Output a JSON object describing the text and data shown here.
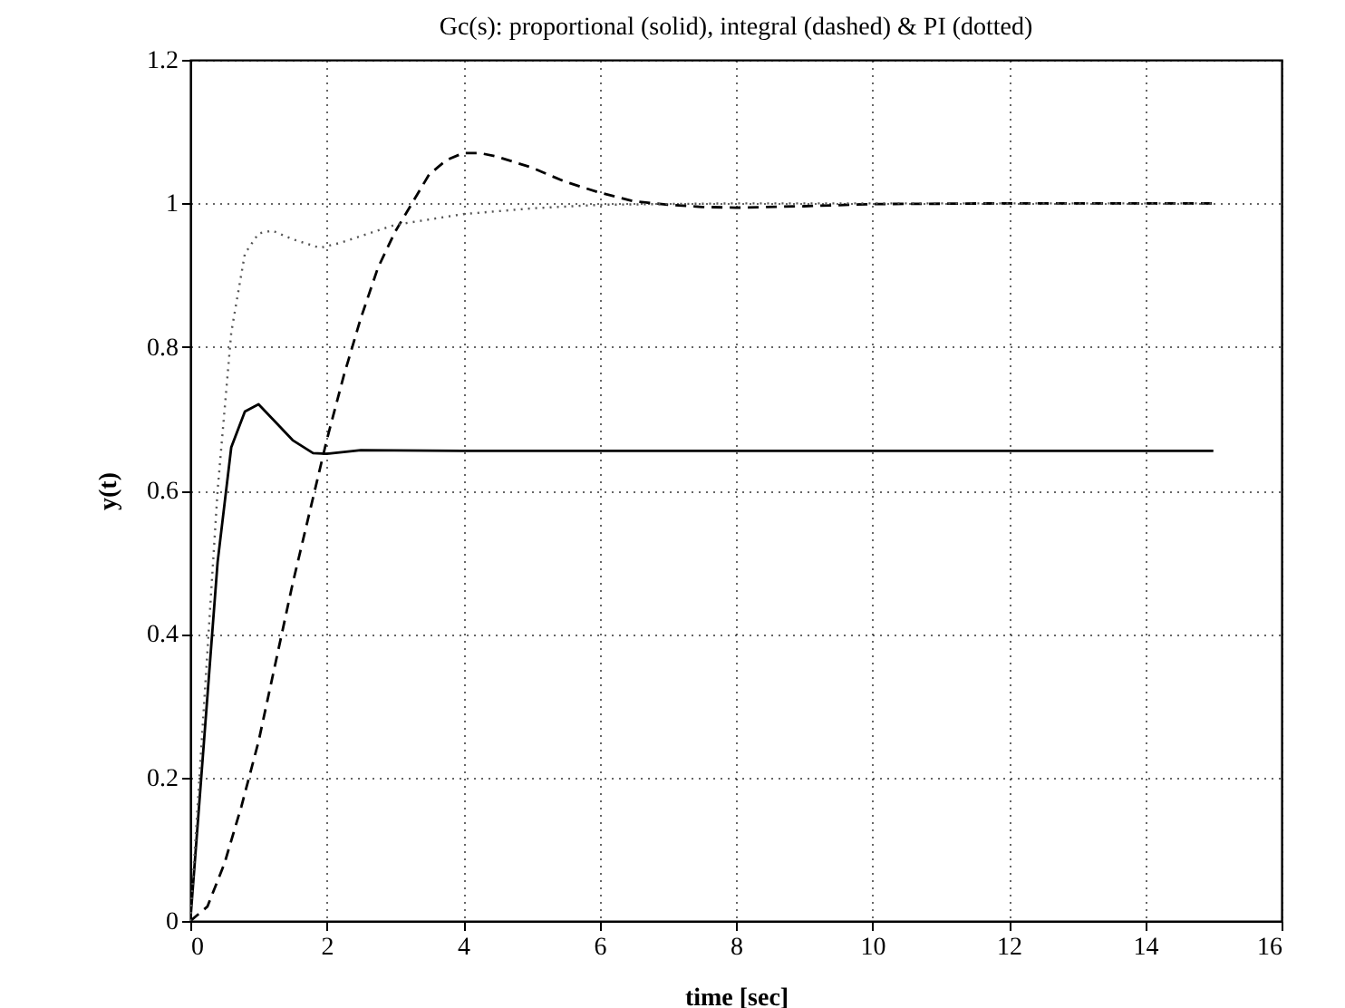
{
  "chart_data": {
    "type": "line",
    "title": "Gc(s): proportional (solid), integral (dashed) & PI (dotted)",
    "xlabel": "time [sec]",
    "ylabel": "y(t)",
    "xlim": [
      0,
      16
    ],
    "xticks": [
      0,
      2,
      4,
      6,
      8,
      10,
      12,
      14,
      16
    ],
    "ylim": [
      0,
      1.2
    ],
    "yticks": [
      0,
      0.2,
      0.4,
      0.6,
      0.8,
      1,
      1.2
    ],
    "grid": true,
    "series": [
      {
        "color": "#000000",
        "line_style": "solid",
        "x": [
          0,
          0.2,
          0.4,
          0.6,
          0.8,
          1.0,
          1.2,
          1.5,
          1.8,
          2.0,
          2.5,
          4,
          15
        ],
        "values": [
          0,
          0.25,
          0.5,
          0.66,
          0.71,
          0.72,
          0.7,
          0.67,
          0.652,
          0.651,
          0.656,
          0.655,
          0.655
        ]
      },
      {
        "color": "#000000",
        "line_style": "dashed",
        "x": [
          0,
          0.25,
          0.5,
          0.75,
          1,
          1.25,
          1.5,
          1.75,
          2,
          2.25,
          2.5,
          2.75,
          3,
          3.25,
          3.5,
          3.75,
          4,
          4.25,
          4.5,
          5,
          5.5,
          6,
          6.5,
          7,
          7.5,
          8,
          9,
          10,
          12,
          15
        ],
        "values": [
          0,
          0.02,
          0.08,
          0.16,
          0.25,
          0.36,
          0.47,
          0.57,
          0.67,
          0.76,
          0.84,
          0.91,
          0.96,
          1.0,
          1.04,
          1.06,
          1.07,
          1.07,
          1.065,
          1.05,
          1.03,
          1.015,
          1.003,
          0.998,
          0.995,
          0.994,
          0.996,
          0.999,
          1.0,
          1.0
        ]
      },
      {
        "color": "#555555",
        "line_style": "dotted",
        "x": [
          0,
          0.2,
          0.4,
          0.6,
          0.8,
          1.0,
          1.2,
          1.5,
          1.9,
          2.2,
          3,
          4,
          5,
          6,
          8,
          15
        ],
        "values": [
          0,
          0.3,
          0.6,
          0.82,
          0.93,
          0.958,
          0.962,
          0.95,
          0.938,
          0.945,
          0.97,
          0.985,
          0.993,
          0.998,
          1.0,
          1.0
        ]
      }
    ]
  }
}
